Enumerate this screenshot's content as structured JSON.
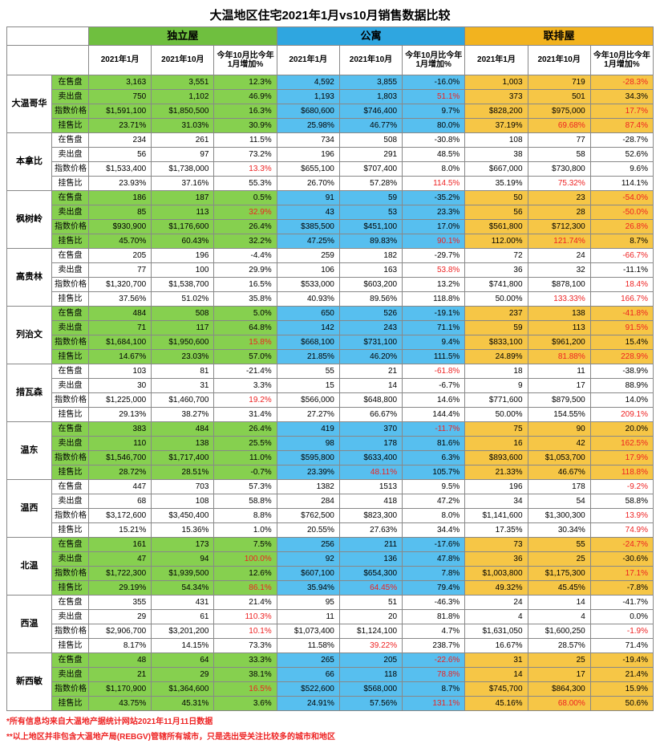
{
  "title": "大温地区住宅2021年1月vs10月销售数据比较",
  "categories": [
    {
      "name": "独立屋",
      "color": "#6fbf3f"
    },
    {
      "name": "公寓",
      "color": "#2fa6e0"
    },
    {
      "name": "联排屋",
      "color": "#f2b31f"
    }
  ],
  "sub_headers": [
    "2021年1月",
    "2021年10月",
    "今年10月比今年1月增加%"
  ],
  "metrics": [
    "在售盘",
    "卖出盘",
    "指数价格",
    "挂售比"
  ],
  "stripe_colors": {
    "detached_alt": "#86d04f",
    "detached_base": "#ffffff",
    "condo_alt": "#57bfef",
    "condo_base": "#ffffff",
    "town_alt": "#f6c646",
    "town_base": "#ffffff",
    "metric_alt": "#86d04f",
    "metric_base": "#ffffff"
  },
  "regions": [
    {
      "name": "大温哥华",
      "alt": true,
      "rows": [
        {
          "d": [
            "3,163",
            "3,551",
            "12.3%"
          ],
          "c": [
            "4,592",
            "3,855",
            [
              "-16.0%",
              false
            ]
          ],
          "t": [
            "1,003",
            "719",
            [
              "-28.3%",
              true
            ]
          ]
        },
        {
          "d": [
            "750",
            "1,102",
            "46.9%"
          ],
          "c": [
            "1,193",
            "1,803",
            [
              "51.1%",
              true
            ]
          ],
          "t": [
            "373",
            "501",
            "34.3%"
          ]
        },
        {
          "d": [
            "$1,591,100",
            "$1,850,500",
            "16.3%"
          ],
          "c": [
            "$680,600",
            "$746,400",
            "9.7%"
          ],
          "t": [
            "$828,200",
            "$975,000",
            [
              "17.7%",
              true
            ]
          ]
        },
        {
          "d": [
            "23.71%",
            "31.03%",
            "30.9%"
          ],
          "c": [
            "25.98%",
            "46.77%",
            "80.0%"
          ],
          "t": [
            "37.19%",
            [
              "69.68%",
              true
            ],
            [
              "87.4%",
              true
            ]
          ]
        }
      ]
    },
    {
      "name": "本拿比",
      "alt": false,
      "rows": [
        {
          "d": [
            "234",
            "261",
            "11.5%"
          ],
          "c": [
            "734",
            "508",
            "-30.8%"
          ],
          "t": [
            "108",
            "77",
            "-28.7%"
          ]
        },
        {
          "d": [
            "56",
            "97",
            "73.2%"
          ],
          "c": [
            "196",
            "291",
            "48.5%"
          ],
          "t": [
            "38",
            "58",
            "52.6%"
          ]
        },
        {
          "d": [
            "$1,533,400",
            "$1,738,000",
            [
              "13.3%",
              true
            ]
          ],
          "c": [
            "$655,100",
            "$707,400",
            "8.0%"
          ],
          "t": [
            "$667,000",
            "$730,800",
            "9.6%"
          ]
        },
        {
          "d": [
            "23.93%",
            "37.16%",
            "55.3%"
          ],
          "c": [
            "26.70%",
            "57.28%",
            [
              "114.5%",
              true
            ]
          ],
          "t": [
            "35.19%",
            [
              "75.32%",
              true
            ],
            "114.1%"
          ]
        }
      ]
    },
    {
      "name": "枫树岭",
      "alt": true,
      "rows": [
        {
          "d": [
            "186",
            "187",
            "0.5%"
          ],
          "c": [
            "91",
            "59",
            [
              "-35.2%",
              false
            ]
          ],
          "t": [
            "50",
            "23",
            [
              "-54.0%",
              true
            ]
          ]
        },
        {
          "d": [
            "85",
            "113",
            [
              "32.9%",
              true
            ]
          ],
          "c": [
            "43",
            "53",
            "23.3%"
          ],
          "t": [
            "56",
            "28",
            [
              "-50.0%",
              true
            ]
          ]
        },
        {
          "d": [
            "$930,900",
            "$1,176,600",
            "26.4%"
          ],
          "c": [
            "$385,500",
            "$451,100",
            "17.0%"
          ],
          "t": [
            "$561,800",
            "$712,300",
            [
              "26.8%",
              true
            ]
          ]
        },
        {
          "d": [
            "45.70%",
            "60.43%",
            "32.2%"
          ],
          "c": [
            "47.25%",
            "89.83%",
            [
              "90.1%",
              true
            ]
          ],
          "t": [
            "112.00%",
            [
              "121.74%",
              true
            ],
            "8.7%"
          ]
        }
      ]
    },
    {
      "name": "高贵林",
      "alt": false,
      "rows": [
        {
          "d": [
            "205",
            "196",
            "-4.4%"
          ],
          "c": [
            "259",
            "182",
            "-29.7%"
          ],
          "t": [
            "72",
            "24",
            [
              "-66.7%",
              true
            ]
          ]
        },
        {
          "d": [
            "77",
            "100",
            "29.9%"
          ],
          "c": [
            "106",
            "163",
            [
              "53.8%",
              true
            ]
          ],
          "t": [
            "36",
            "32",
            "-11.1%"
          ]
        },
        {
          "d": [
            "$1,320,700",
            "$1,538,700",
            "16.5%"
          ],
          "c": [
            "$533,000",
            "$603,200",
            "13.2%"
          ],
          "t": [
            "$741,800",
            "$878,100",
            [
              "18.4%",
              true
            ]
          ]
        },
        {
          "d": [
            "37.56%",
            "51.02%",
            "35.8%"
          ],
          "c": [
            "40.93%",
            "89.56%",
            "118.8%"
          ],
          "t": [
            "50.00%",
            [
              "133.33%",
              true
            ],
            [
              "166.7%",
              true
            ]
          ]
        }
      ]
    },
    {
      "name": "列治文",
      "alt": true,
      "rows": [
        {
          "d": [
            "484",
            "508",
            "5.0%"
          ],
          "c": [
            "650",
            "526",
            [
              "-19.1%",
              false
            ]
          ],
          "t": [
            "237",
            "138",
            [
              "-41.8%",
              true
            ]
          ]
        },
        {
          "d": [
            "71",
            "117",
            "64.8%"
          ],
          "c": [
            "142",
            "243",
            "71.1%"
          ],
          "t": [
            "59",
            "113",
            [
              "91.5%",
              true
            ]
          ]
        },
        {
          "d": [
            "$1,684,100",
            "$1,950,600",
            [
              "15.8%",
              true
            ]
          ],
          "c": [
            "$668,100",
            "$731,100",
            "9.4%"
          ],
          "t": [
            "$833,100",
            "$961,200",
            "15.4%"
          ]
        },
        {
          "d": [
            "14.67%",
            "23.03%",
            "57.0%"
          ],
          "c": [
            "21.85%",
            "46.20%",
            "111.5%"
          ],
          "t": [
            "24.89%",
            [
              "81.88%",
              true
            ],
            [
              "228.9%",
              true
            ]
          ]
        }
      ]
    },
    {
      "name": "措瓦森",
      "alt": false,
      "rows": [
        {
          "d": [
            "103",
            "81",
            "-21.4%"
          ],
          "c": [
            "55",
            "21",
            [
              "-61.8%",
              true
            ]
          ],
          "t": [
            "18",
            "11",
            "-38.9%"
          ]
        },
        {
          "d": [
            "30",
            "31",
            "3.3%"
          ],
          "c": [
            "15",
            "14",
            "-6.7%"
          ],
          "t": [
            "9",
            "17",
            "88.9%"
          ]
        },
        {
          "d": [
            "$1,225,000",
            "$1,460,700",
            [
              "19.2%",
              true
            ]
          ],
          "c": [
            "$566,000",
            "$648,800",
            "14.6%"
          ],
          "t": [
            "$771,600",
            "$879,500",
            "14.0%"
          ]
        },
        {
          "d": [
            "29.13%",
            "38.27%",
            "31.4%"
          ],
          "c": [
            "27.27%",
            "66.67%",
            "144.4%"
          ],
          "t": [
            "50.00%",
            "154.55%",
            [
              "209.1%",
              true
            ]
          ]
        }
      ]
    },
    {
      "name": "温东",
      "alt": true,
      "rows": [
        {
          "d": [
            "383",
            "484",
            "26.4%"
          ],
          "c": [
            "419",
            "370",
            [
              "-11.7%",
              true
            ]
          ],
          "t": [
            "75",
            "90",
            "20.0%"
          ]
        },
        {
          "d": [
            "110",
            "138",
            "25.5%"
          ],
          "c": [
            "98",
            "178",
            "81.6%"
          ],
          "t": [
            "16",
            "42",
            [
              "162.5%",
              true
            ]
          ]
        },
        {
          "d": [
            "$1,546,700",
            "$1,717,400",
            "11.0%"
          ],
          "c": [
            "$595,800",
            "$633,400",
            "6.3%"
          ],
          "t": [
            "$893,600",
            "$1,053,700",
            [
              "17.9%",
              true
            ]
          ]
        },
        {
          "d": [
            "28.72%",
            "28.51%",
            "-0.7%"
          ],
          "c": [
            "23.39%",
            [
              "48.11%",
              true
            ],
            "105.7%"
          ],
          "t": [
            "21.33%",
            "46.67%",
            [
              "118.8%",
              true
            ]
          ]
        }
      ]
    },
    {
      "name": "温西",
      "alt": false,
      "rows": [
        {
          "d": [
            "447",
            "703",
            "57.3%"
          ],
          "c": [
            "1382",
            "1513",
            "9.5%"
          ],
          "t": [
            "196",
            "178",
            [
              "-9.2%",
              true
            ]
          ]
        },
        {
          "d": [
            "68",
            "108",
            "58.8%"
          ],
          "c": [
            "284",
            "418",
            "47.2%"
          ],
          "t": [
            "34",
            "54",
            "58.8%"
          ]
        },
        {
          "d": [
            "$3,172,600",
            "$3,450,400",
            "8.8%"
          ],
          "c": [
            "$762,500",
            "$823,300",
            "8.0%"
          ],
          "t": [
            "$1,141,600",
            "$1,300,300",
            [
              "13.9%",
              true
            ]
          ]
        },
        {
          "d": [
            "15.21%",
            "15.36%",
            "1.0%"
          ],
          "c": [
            "20.55%",
            "27.63%",
            "34.4%"
          ],
          "t": [
            "17.35%",
            "30.34%",
            [
              "74.9%",
              true
            ]
          ]
        }
      ]
    },
    {
      "name": "北温",
      "alt": true,
      "rows": [
        {
          "d": [
            "161",
            "173",
            "7.5%"
          ],
          "c": [
            "256",
            "211",
            [
              "-17.6%",
              false
            ]
          ],
          "t": [
            "73",
            "55",
            [
              "-24.7%",
              true
            ]
          ]
        },
        {
          "d": [
            "47",
            "94",
            [
              "100.0%",
              true
            ]
          ],
          "c": [
            "92",
            "136",
            "47.8%"
          ],
          "t": [
            "36",
            "25",
            "-30.6%"
          ]
        },
        {
          "d": [
            "$1,722,300",
            "$1,939,500",
            "12.6%"
          ],
          "c": [
            "$607,100",
            "$654,300",
            "7.8%"
          ],
          "t": [
            "$1,003,800",
            "$1,175,300",
            [
              "17.1%",
              true
            ]
          ]
        },
        {
          "d": [
            "29.19%",
            "54.34%",
            [
              "86.1%",
              true
            ]
          ],
          "c": [
            "35.94%",
            [
              "64.45%",
              true
            ],
            "79.4%"
          ],
          "t": [
            "49.32%",
            "45.45%",
            "-7.8%"
          ]
        }
      ]
    },
    {
      "name": "西温",
      "alt": false,
      "rows": [
        {
          "d": [
            "355",
            "431",
            "21.4%"
          ],
          "c": [
            "95",
            "51",
            "-46.3%"
          ],
          "t": [
            "24",
            "14",
            "-41.7%"
          ]
        },
        {
          "d": [
            "29",
            "61",
            [
              "110.3%",
              true
            ]
          ],
          "c": [
            "11",
            "20",
            "81.8%"
          ],
          "t": [
            "4",
            "4",
            "0.0%"
          ]
        },
        {
          "d": [
            "$2,906,700",
            "$3,201,200",
            [
              "10.1%",
              true
            ]
          ],
          "c": [
            "$1,073,400",
            "$1,124,100",
            "4.7%"
          ],
          "t": [
            "$1,631,050",
            "$1,600,250",
            [
              "-1.9%",
              true
            ]
          ]
        },
        {
          "d": [
            "8.17%",
            "14.15%",
            "73.3%"
          ],
          "c": [
            "11.58%",
            [
              "39.22%",
              true
            ],
            "238.7%"
          ],
          "t": [
            "16.67%",
            "28.57%",
            "71.4%"
          ]
        }
      ]
    },
    {
      "name": "新西敏",
      "alt": true,
      "rows": [
        {
          "d": [
            "48",
            "64",
            "33.3%"
          ],
          "c": [
            "265",
            "205",
            [
              "-22.6%",
              true
            ]
          ],
          "t": [
            "31",
            "25",
            "-19.4%"
          ]
        },
        {
          "d": [
            "21",
            "29",
            "38.1%"
          ],
          "c": [
            "66",
            "118",
            [
              "78.8%",
              true
            ]
          ],
          "t": [
            "14",
            "17",
            "21.4%"
          ]
        },
        {
          "d": [
            "$1,170,900",
            "$1,364,600",
            [
              "16.5%",
              true
            ]
          ],
          "c": [
            "$522,600",
            "$568,000",
            "8.7%"
          ],
          "t": [
            "$745,700",
            "$864,300",
            "15.9%"
          ]
        },
        {
          "d": [
            "43.75%",
            "45.31%",
            "3.6%"
          ],
          "c": [
            "24.91%",
            "57.56%",
            [
              "131.1%",
              true
            ]
          ],
          "t": [
            "45.16%",
            [
              "68.00%",
              true
            ],
            "50.6%"
          ]
        }
      ]
    }
  ],
  "footnotes": [
    "*所有信息均来自大温地产据统计网站2021年11月11日数据",
    "**以上地区并非包含大温地产局(REBGV)管辖所有城市，只是选出受关注比较多的城市和地区"
  ]
}
